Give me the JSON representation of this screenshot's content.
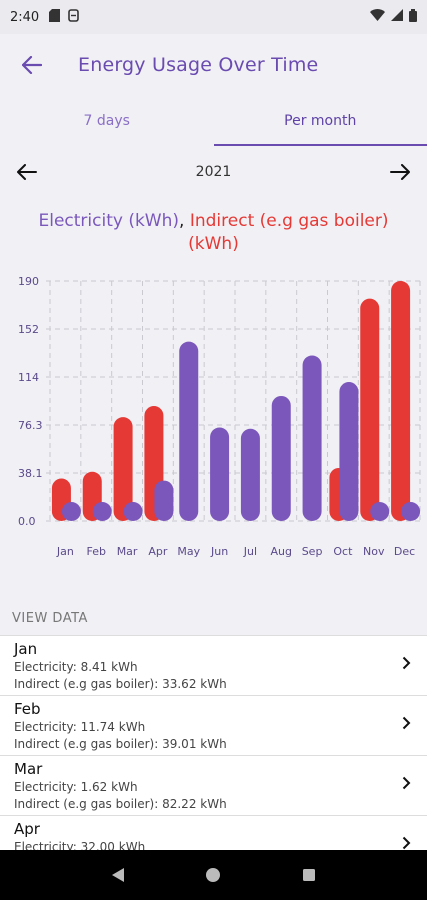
{
  "status_bar": {
    "time": "2:40"
  },
  "app_bar": {
    "title": "Energy Usage Over Time"
  },
  "tabs": [
    {
      "label": "7 days",
      "active": false
    },
    {
      "label": "Per month",
      "active": true
    }
  ],
  "year_nav": {
    "year": "2021"
  },
  "legend": {
    "electricity": "Electricity (kWh)",
    "separator": ", ",
    "indirect": "Indirect (e.g gas boiler) (kWh)"
  },
  "colors": {
    "electricity": "#7b57bb",
    "indirect": "#e53935",
    "accent": "#6a4bb0"
  },
  "chart_data": {
    "type": "bar",
    "categories": [
      "Jan",
      "Feb",
      "Mar",
      "Apr",
      "May",
      "Jun",
      "Jul",
      "Aug",
      "Sep",
      "Oct",
      "Nov",
      "Dec"
    ],
    "y_ticks": [
      "190",
      "152",
      "114",
      "76.3",
      "38.1",
      "0.0"
    ],
    "ylim": [
      0,
      190
    ],
    "grid": true,
    "series": [
      {
        "name": "Electricity (kWh)",
        "values": [
          8.41,
          11.74,
          1.62,
          32.0,
          142,
          74,
          73,
          99,
          131,
          110,
          0,
          0
        ]
      },
      {
        "name": "Indirect (e.g gas boiler) (kWh)",
        "values": [
          33.62,
          39.01,
          82.22,
          91,
          0,
          0,
          0,
          0,
          0,
          42,
          176,
          190
        ]
      }
    ]
  },
  "view_data": {
    "label": "VIEW DATA",
    "rows": [
      {
        "month": "Jan",
        "electricity": "Electricity: 8.41 kWh",
        "indirect": "Indirect (e.g gas boiler): 33.62 kWh"
      },
      {
        "month": "Feb",
        "electricity": "Electricity: 11.74 kWh",
        "indirect": "Indirect (e.g gas boiler): 39.01 kWh"
      },
      {
        "month": "Mar",
        "electricity": "Electricity: 1.62 kWh",
        "indirect": "Indirect (e.g gas boiler): 82.22 kWh"
      },
      {
        "month": "Apr",
        "electricity": "Electricity: 32.00 kWh",
        "indirect": ""
      }
    ]
  }
}
